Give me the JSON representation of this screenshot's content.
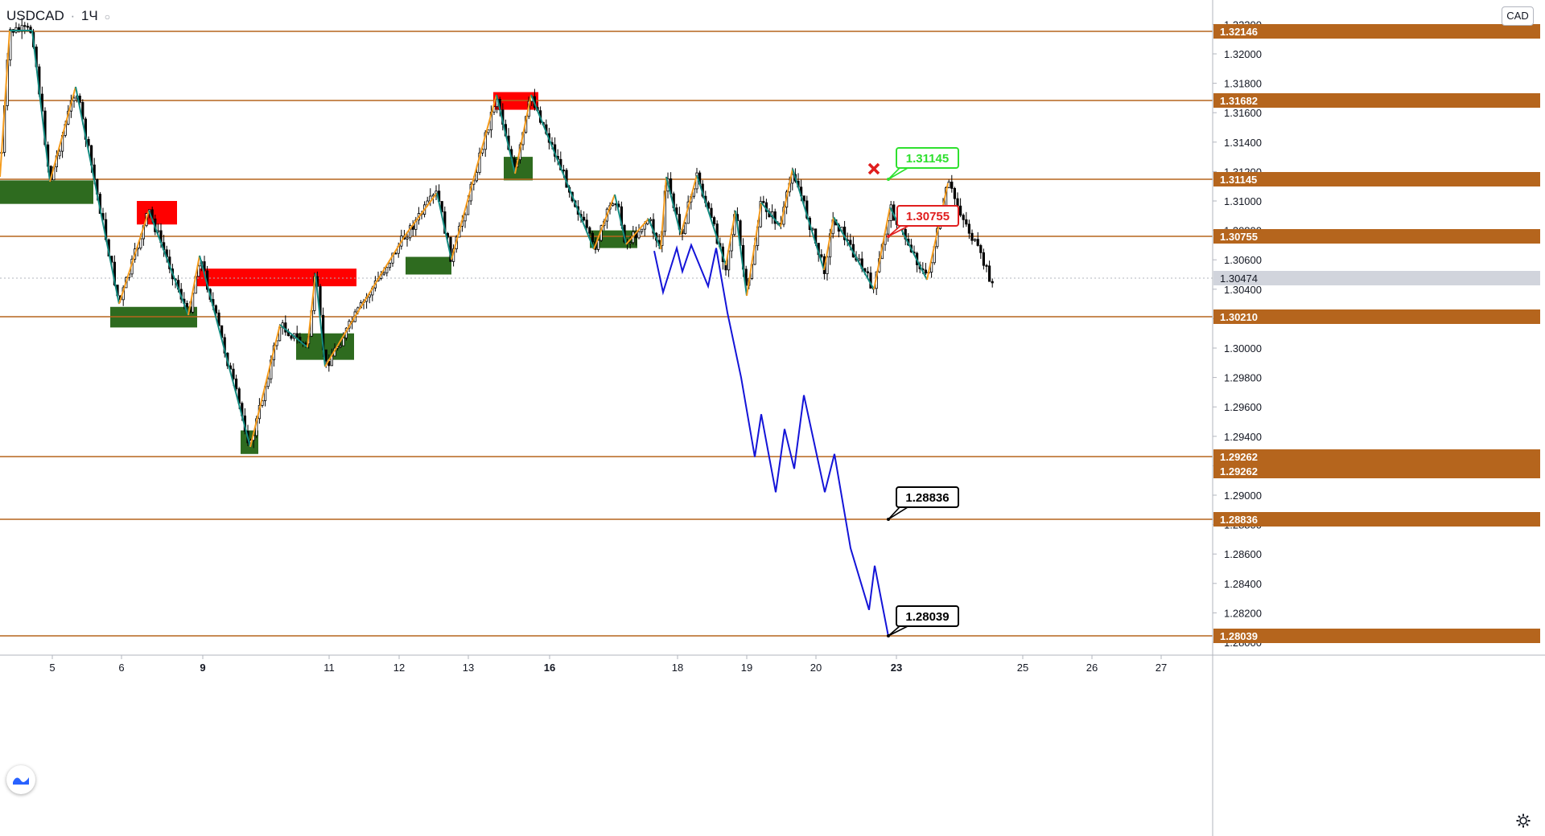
{
  "header": {
    "symbol": "USDCAD",
    "interval": "1Ч"
  },
  "currency_badge": "CAD",
  "chart_data": {
    "type": "candlestick",
    "title": "USDCAD · 1Ч",
    "xlabel": "",
    "ylabel": "",
    "ylim": [
      1.27939,
      1.3235
    ],
    "grid": false,
    "x_ticks": [
      {
        "label": "5",
        "bold": false
      },
      {
        "label": "6",
        "bold": false
      },
      {
        "label": "9",
        "bold": true
      },
      {
        "label": "11",
        "bold": false
      },
      {
        "label": "12",
        "bold": false
      },
      {
        "label": "13",
        "bold": false
      },
      {
        "label": "16",
        "bold": true
      },
      {
        "label": "18",
        "bold": false
      },
      {
        "label": "19",
        "bold": false
      },
      {
        "label": "20",
        "bold": false
      },
      {
        "label": "23",
        "bold": true
      },
      {
        "label": "25",
        "bold": false
      },
      {
        "label": "26",
        "bold": false
      },
      {
        "label": "27",
        "bold": false
      }
    ],
    "y_ticks": [
      "1.32200",
      "1.32000",
      "1.31800",
      "1.31600",
      "1.31400",
      "1.31200",
      "1.31000",
      "1.30800",
      "1.30600",
      "1.30400",
      "1.30200",
      "1.30000",
      "1.29800",
      "1.29600",
      "1.29400",
      "1.29200",
      "1.29000",
      "1.28800",
      "1.28600",
      "1.28400",
      "1.28200",
      "1.28000"
    ],
    "levels": [
      {
        "value": "1.32146"
      },
      {
        "value": "1.31682"
      },
      {
        "value": "1.31145"
      },
      {
        "value": "1.30755"
      },
      {
        "value": "1.30210"
      },
      {
        "value": "1.29262"
      },
      {
        "value": "1.28836"
      },
      {
        "value": "1.28039"
      }
    ],
    "extra_level_label": "1.29262",
    "last_price": "1.30474",
    "callouts": [
      {
        "text": "1.31145",
        "style": "green"
      },
      {
        "text": "1.30755",
        "style": "red"
      },
      {
        "text": "1.28836",
        "style": "black"
      },
      {
        "text": "1.28039",
        "style": "black"
      }
    ],
    "supply_zones": [
      {
        "price_top": 1.31,
        "price_bottom": 1.3084
      },
      {
        "price_top": 1.3054,
        "price_bottom": 1.3042
      },
      {
        "price_top": 1.3174,
        "price_bottom": 1.3162
      }
    ],
    "demand_zones": [
      {
        "price_top": 1.3114,
        "price_bottom": 1.3098
      },
      {
        "price_top": 1.3028,
        "price_bottom": 1.3014
      },
      {
        "price_top": 1.2944,
        "price_bottom": 1.2928
      },
      {
        "price_top": 1.301,
        "price_bottom": 1.2992
      },
      {
        "price_top": 1.3062,
        "price_bottom": 1.305
      },
      {
        "price_top": 1.313,
        "price_bottom": 1.3114
      },
      {
        "price_top": 1.308,
        "price_bottom": 1.3068
      }
    ],
    "projection": [
      1.3066,
      1.3038,
      1.3068,
      1.3052,
      1.307,
      1.3042,
      1.3068,
      1.3024,
      1.298,
      1.2926,
      1.2955,
      1.2902,
      1.2945,
      1.2918,
      1.2968,
      1.2902,
      1.2928,
      1.2864,
      1.2822,
      1.2852,
      1.2804
    ],
    "colors": {
      "level": "#b5651d",
      "supply": "#ff0000",
      "demand": "#2e6b1f",
      "zigzag_up": "#f59b1c",
      "zigzag_down": "#138a80",
      "projection": "#1414d8",
      "candle": "#000000",
      "last_price": "#b2b5be"
    }
  }
}
